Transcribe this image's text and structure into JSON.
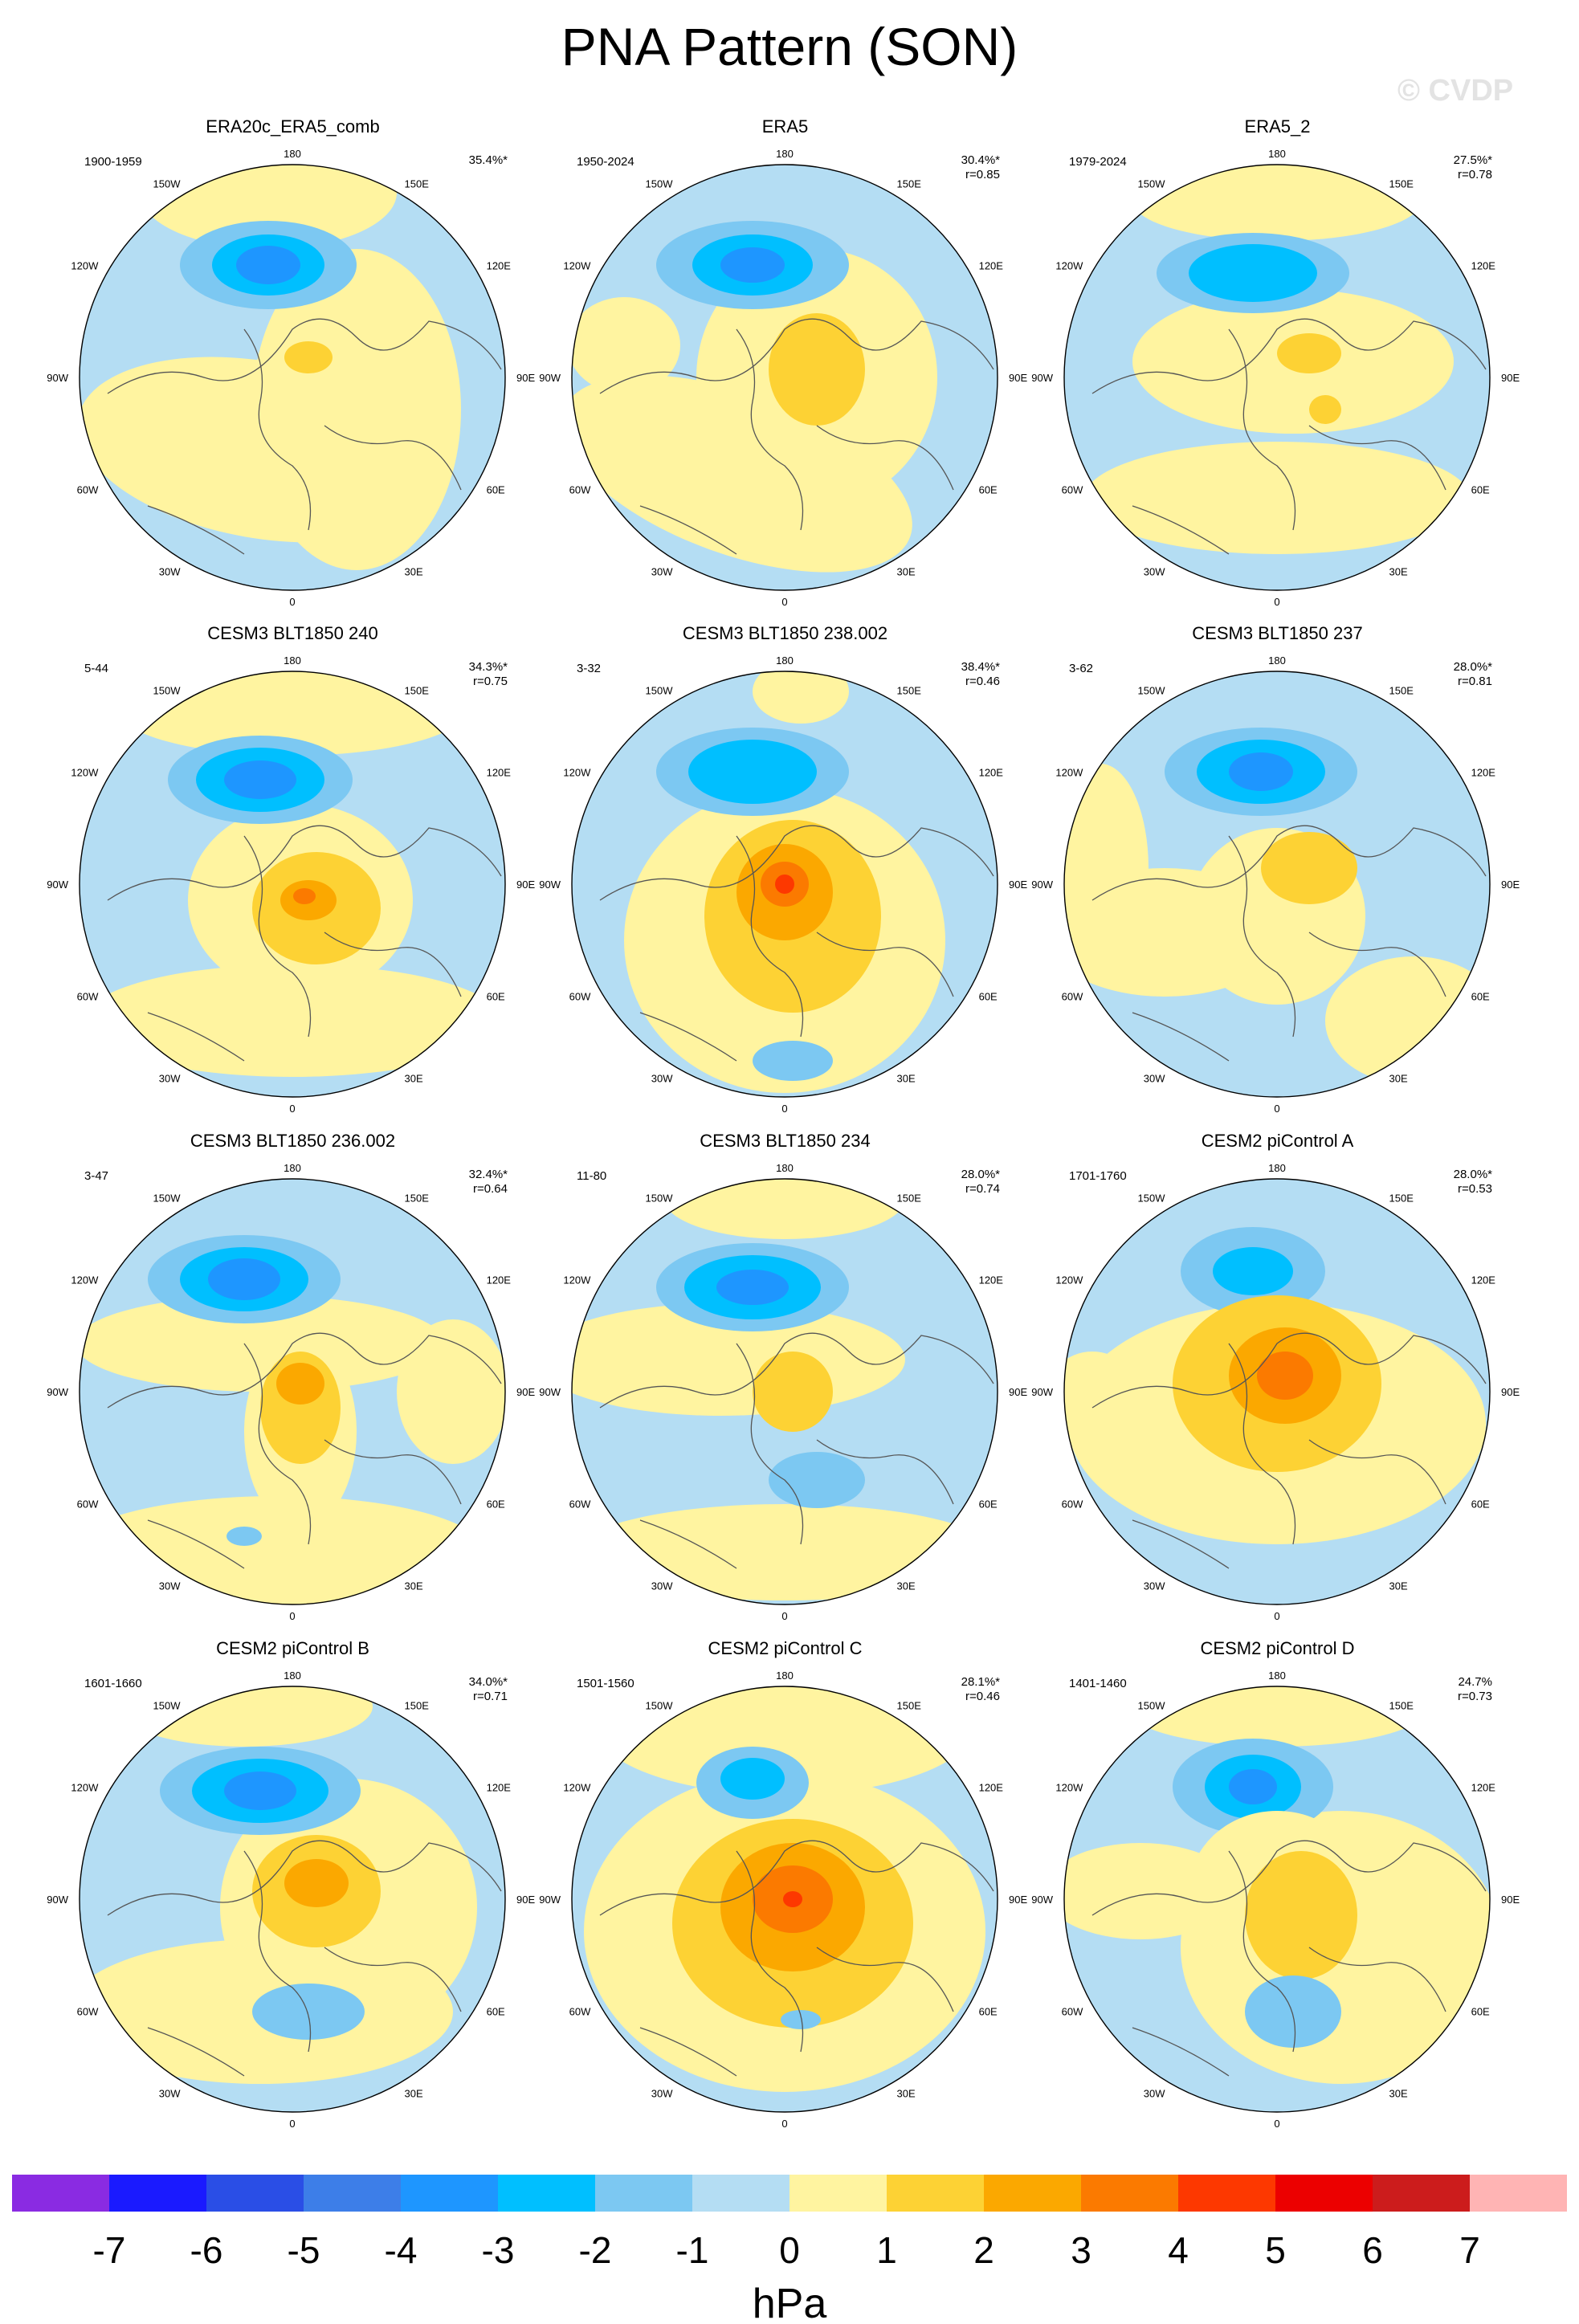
{
  "title": "PNA Pattern (SON)",
  "watermark": "© CVDP",
  "lon_labels": [
    "180",
    "150E",
    "120E",
    "90E",
    "60E",
    "30E",
    "0",
    "30W",
    "60W",
    "90W",
    "120W",
    "150W"
  ],
  "colorbar": {
    "unit": "hPa",
    "ticks": [
      "-7",
      "-6",
      "-5",
      "-4",
      "-3",
      "-2",
      "-1",
      "0",
      "1",
      "2",
      "3",
      "4",
      "5",
      "6",
      "7"
    ],
    "colors": [
      "#8a2be2",
      "#1a1aff",
      "#2a4ee6",
      "#3d7ee8",
      "#1e96ff",
      "#00bfff",
      "#7cc8f2",
      "#b4ddf3",
      "#fff4a0",
      "#fdd234",
      "#fba800",
      "#fb7a00",
      "#fd3800",
      "#ec0000",
      "#cc1c1c",
      "#ffb4b4"
    ]
  },
  "panels": [
    {
      "title": "ERA20c_ERA5_comb",
      "period": "1900-1959",
      "pct": "35.4%*",
      "r": ""
    },
    {
      "title": "ERA5",
      "period": "1950-2024",
      "pct": "30.4%*",
      "r": "r=0.85"
    },
    {
      "title": "ERA5_2",
      "period": "1979-2024",
      "pct": "27.5%*",
      "r": "r=0.78"
    },
    {
      "title": "CESM3 BLT1850 240",
      "period": "5-44",
      "pct": "34.3%*",
      "r": "r=0.75"
    },
    {
      "title": "CESM3 BLT1850 238.002",
      "period": "3-32",
      "pct": "38.4%*",
      "r": "r=0.46"
    },
    {
      "title": "CESM3 BLT1850 237",
      "period": "3-62",
      "pct": "28.0%*",
      "r": "r=0.81"
    },
    {
      "title": "CESM3 BLT1850 236.002",
      "period": "3-47",
      "pct": "32.4%*",
      "r": "r=0.64"
    },
    {
      "title": "CESM3 BLT1850 234",
      "period": "11-80",
      "pct": "28.0%*",
      "r": "r=0.74"
    },
    {
      "title": "CESM2 piControl A",
      "period": "1701-1760",
      "pct": "28.0%*",
      "r": "r=0.53"
    },
    {
      "title": "CESM2 piControl B",
      "period": "1601-1660",
      "pct": "34.0%*",
      "r": "r=0.71"
    },
    {
      "title": "CESM2 piControl C",
      "period": "1501-1560",
      "pct": "28.1%*",
      "r": "r=0.46"
    },
    {
      "title": "CESM2 piControl D",
      "period": "1401-1460",
      "pct": "24.7%",
      "r": "r=0.73"
    }
  ]
}
